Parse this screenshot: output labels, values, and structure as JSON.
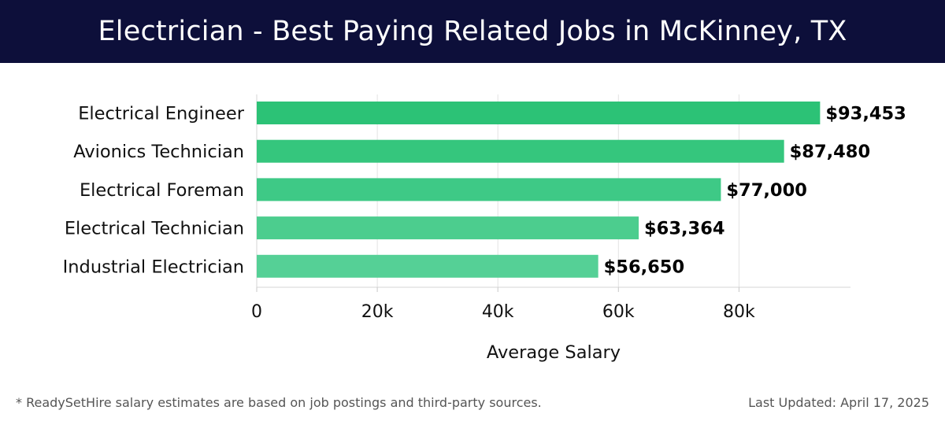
{
  "header": {
    "title": "Electrician - Best Paying Related Jobs in McKinney, TX",
    "background_color": "#0d0f3a"
  },
  "chart_data": {
    "type": "bar",
    "orientation": "horizontal",
    "categories": [
      "Electrical Engineer",
      "Avionics Technician",
      "Electrical Foreman",
      "Electrical Technician",
      "Industrial Electrician"
    ],
    "values": [
      93453,
      87480,
      77000,
      63364,
      56650
    ],
    "value_labels": [
      "$93,453",
      "$87,480",
      "$77,000",
      "$63,364",
      "$56,650"
    ],
    "xlabel": "Average Salary",
    "ylabel": "",
    "xlim": [
      0,
      98500
    ],
    "xticks": [
      0,
      20000,
      40000,
      60000,
      80000
    ],
    "xtick_labels": [
      "0",
      "20k",
      "40k",
      "60k",
      "80k"
    ],
    "grid": true,
    "bar_colors": [
      "#2cc276",
      "#35c67d",
      "#3ec986",
      "#4ccd8e",
      "#55d096"
    ]
  },
  "footer": {
    "note": "* ReadySetHire salary estimates are based on job postings and third-party sources.",
    "updated": "Last Updated: April 17, 2025"
  }
}
